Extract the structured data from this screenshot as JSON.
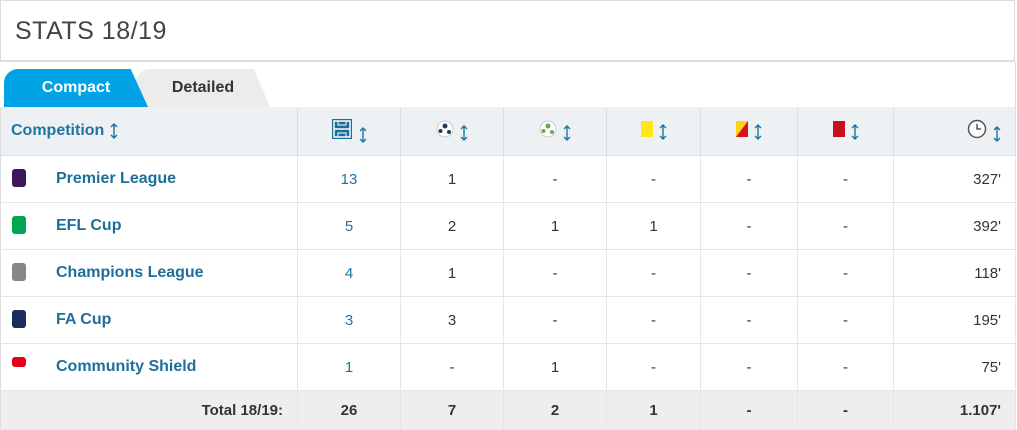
{
  "header": {
    "title": "STATS 18/19"
  },
  "tabs": [
    "Compact",
    "Detailed"
  ],
  "table": {
    "header": "Competition",
    "rows": [
      [
        "Premier League",
        "13",
        "1",
        "-",
        "-",
        "-",
        "-",
        "327'"
      ],
      [
        "EFL Cup",
        "5",
        "2",
        "1",
        "1",
        "-",
        "-",
        "392'"
      ],
      [
        "Champions League",
        "4",
        "1",
        "-",
        "-",
        "-",
        "-",
        "118'"
      ],
      [
        "FA Cup",
        "3",
        "3",
        "-",
        "-",
        "-",
        "-",
        "195'"
      ],
      [
        "Community Shield",
        "1",
        "-",
        "1",
        "-",
        "-",
        "-",
        "75'"
      ]
    ],
    "total": [
      "Total 18/19:",
      "26",
      "7",
      "2",
      "1",
      "-",
      "-",
      "1.107'"
    ]
  }
}
